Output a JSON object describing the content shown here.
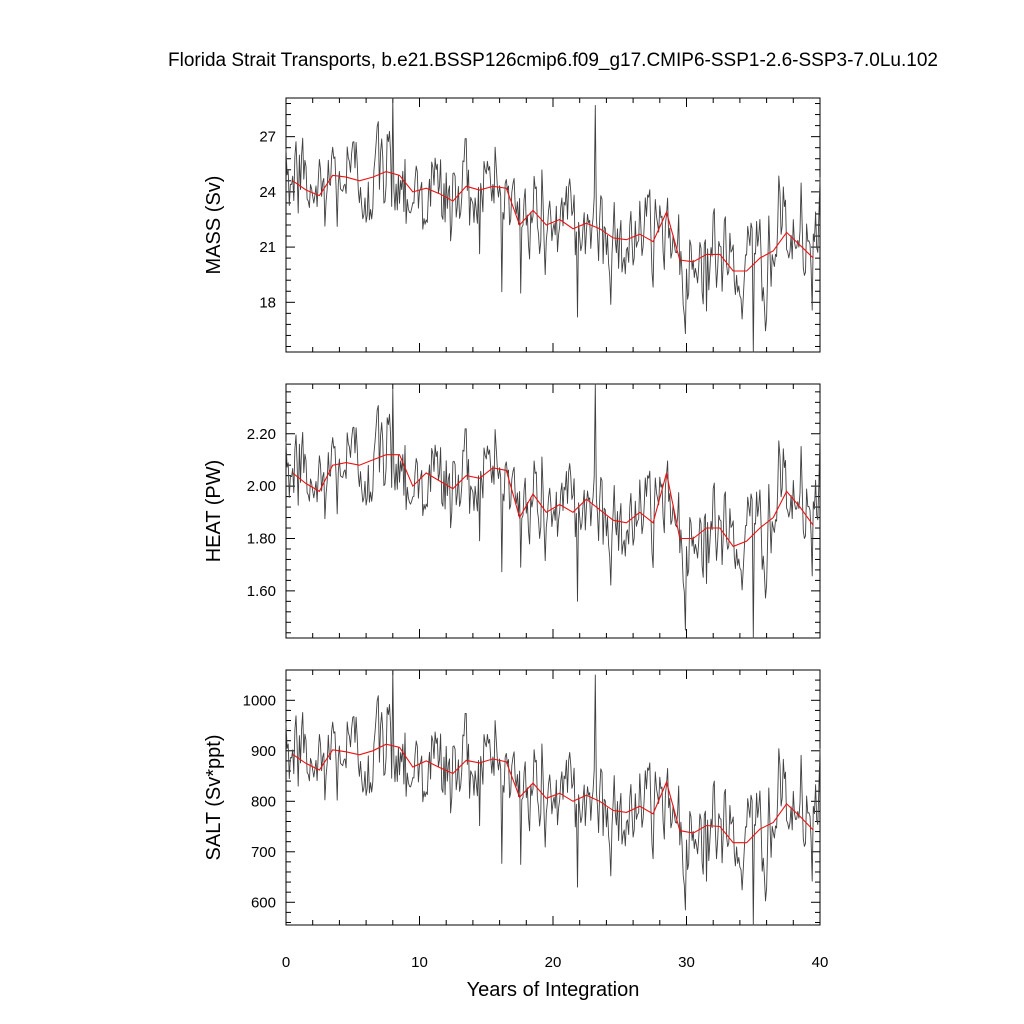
{
  "chart_data": {
    "title": "Florida Strait Transports, b.e21.BSSP126cmip6.f09_g17.CMIP6-SSP1-2.6-SSP3-7.0Lu.102",
    "xlabel": "Years of Integration",
    "xlim": [
      0,
      40
    ],
    "xticks": [
      "0",
      "10",
      "20",
      "30",
      "40"
    ],
    "series_colors": {
      "monthly": "#404040",
      "annual": "#ee1111"
    },
    "panels": [
      {
        "type": "line",
        "ylabel": "MASS (Sv)",
        "ylim": [
          15.3,
          29.1
        ],
        "yticks": [
          "18",
          "21",
          "24",
          "27"
        ],
        "ytick_values": [
          18,
          21,
          24,
          27
        ],
        "annual_x": [
          0.5,
          1.5,
          2.5,
          3.5,
          4.5,
          5.5,
          6.5,
          7.5,
          8.5,
          9.5,
          10.5,
          11.5,
          12.5,
          13.5,
          14.5,
          15.5,
          16.5,
          17.5,
          18.5,
          19.5,
          20.5,
          21.5,
          22.5,
          23.5,
          24.5,
          25.5,
          26.5,
          27.5,
          28.5,
          29.5,
          30.5,
          31.5,
          32.5,
          33.5,
          34.5,
          35.5,
          36.5,
          37.5,
          38.5,
          39.5
        ],
        "annual": [
          24.6,
          24.1,
          23.8,
          24.9,
          24.8,
          24.6,
          24.8,
          25.1,
          24.9,
          24.0,
          24.2,
          23.9,
          23.5,
          24.3,
          24.1,
          24.3,
          24.2,
          22.2,
          23.0,
          22.2,
          22.5,
          22.0,
          22.3,
          22.0,
          21.5,
          21.4,
          21.7,
          21.3,
          22.9,
          20.3,
          20.2,
          20.6,
          20.6,
          19.7,
          19.7,
          20.4,
          20.8,
          21.8,
          21.1,
          20.4
        ],
        "monthly_y0": 24.6,
        "monthly_sd": 1.45,
        "spikes": [
          [
            1,
            26.0
          ],
          [
            8,
            29.1
          ],
          [
            23.2,
            28.7
          ],
          [
            35,
            15.3
          ],
          [
            29.9,
            16.3
          ],
          [
            17.6,
            18.5
          ],
          [
            21.8,
            17.2
          ],
          [
            40,
            24.8
          ]
        ]
      },
      {
        "type": "line",
        "ylabel": "HEAT (PW)",
        "ylim": [
          1.42,
          2.39
        ],
        "yticks": [
          "1.60",
          "1.80",
          "2.00",
          "2.20"
        ],
        "ytick_values": [
          1.6,
          1.8,
          2.0,
          2.2
        ],
        "annual_x": [
          0.5,
          1.5,
          2.5,
          3.5,
          4.5,
          5.5,
          6.5,
          7.5,
          8.5,
          9.5,
          10.5,
          11.5,
          12.5,
          13.5,
          14.5,
          15.5,
          16.5,
          17.5,
          18.5,
          19.5,
          20.5,
          21.5,
          22.5,
          23.5,
          24.5,
          25.5,
          26.5,
          27.5,
          28.5,
          29.5,
          30.5,
          31.5,
          32.5,
          33.5,
          34.5,
          35.5,
          36.5,
          37.5,
          38.5,
          39.5
        ],
        "annual": [
          2.05,
          2.01,
          1.98,
          2.08,
          2.09,
          2.08,
          2.1,
          2.12,
          2.12,
          2.0,
          2.05,
          2.02,
          1.99,
          2.04,
          2.03,
          2.07,
          2.06,
          1.88,
          1.97,
          1.9,
          1.93,
          1.9,
          1.95,
          1.91,
          1.87,
          1.86,
          1.9,
          1.86,
          2.05,
          1.8,
          1.8,
          1.84,
          1.84,
          1.77,
          1.79,
          1.84,
          1.88,
          1.98,
          1.92,
          1.85
        ],
        "monthly_y0": 2.05,
        "monthly_sd": 0.1,
        "spikes": [
          [
            1,
            2.16
          ],
          [
            8,
            2.37
          ],
          [
            23.2,
            2.39
          ],
          [
            35,
            1.42
          ],
          [
            29.9,
            1.45
          ],
          [
            17.6,
            1.69
          ],
          [
            21.8,
            1.56
          ],
          [
            40,
            2.2
          ]
        ]
      },
      {
        "type": "line",
        "ylabel": "SALT (Sv*ppt)",
        "ylim": [
          555,
          1060
        ],
        "yticks": [
          "600",
          "700",
          "800",
          "900",
          "1000"
        ],
        "ytick_values": [
          600,
          700,
          800,
          900,
          1000
        ],
        "annual_x": [
          0.5,
          1.5,
          2.5,
          3.5,
          4.5,
          5.5,
          6.5,
          7.5,
          8.5,
          9.5,
          10.5,
          11.5,
          12.5,
          13.5,
          14.5,
          15.5,
          16.5,
          17.5,
          18.5,
          19.5,
          20.5,
          21.5,
          22.5,
          23.5,
          24.5,
          25.5,
          26.5,
          27.5,
          28.5,
          29.5,
          30.5,
          31.5,
          32.5,
          33.5,
          34.5,
          35.5,
          36.5,
          37.5,
          38.5,
          39.5
        ],
        "annual": [
          893,
          875,
          862,
          902,
          898,
          892,
          900,
          913,
          907,
          868,
          880,
          867,
          855,
          881,
          876,
          884,
          878,
          808,
          836,
          806,
          816,
          800,
          812,
          800,
          782,
          778,
          790,
          775,
          838,
          742,
          737,
          752,
          750,
          718,
          718,
          745,
          758,
          795,
          770,
          743
        ],
        "monthly_y0": 893,
        "monthly_sd": 52,
        "spikes": [
          [
            1,
            930
          ],
          [
            8,
            1060
          ],
          [
            23.2,
            1050
          ],
          [
            35,
            555
          ],
          [
            29.9,
            585
          ],
          [
            17.6,
            675
          ],
          [
            21.8,
            630
          ],
          [
            40,
            905
          ]
        ]
      }
    ]
  }
}
